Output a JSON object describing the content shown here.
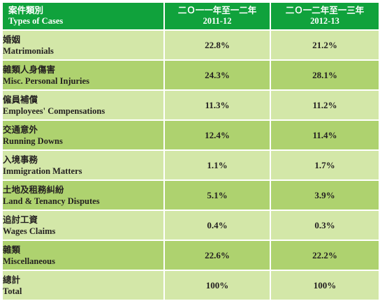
{
  "header": {
    "category_zh": "案件類別",
    "category_en": "Types of Cases",
    "year1_zh": "二Ｏ一一年至一二年",
    "year1": "2011-12",
    "year2_zh": "二Ｏ一二年至一三年",
    "year2": "2012-13"
  },
  "rows": [
    {
      "zh": "婚姻",
      "en": "Matrimonials",
      "v1": "22.8%",
      "v2": "21.2%"
    },
    {
      "zh": "雜類人身傷害",
      "en": "Misc. Personal Injuries",
      "v1": "24.3%",
      "v2": "28.1%"
    },
    {
      "zh": "僱員補償",
      "en": "Employees' Compensations",
      "v1": "11.3%",
      "v2": "11.2%"
    },
    {
      "zh": "交通意外",
      "en": "Running Downs",
      "v1": "12.4%",
      "v2": "11.4%"
    },
    {
      "zh": "入境事務",
      "en": "Immigration Matters",
      "v1": "1.1%",
      "v2": "1.7%"
    },
    {
      "zh": "土地及租務糾紛",
      "en": "Land & Tenancy Disputes",
      "v1": "5.1%",
      "v2": "3.9%"
    },
    {
      "zh": "追討工資",
      "en": "Wages Claims",
      "v1": "0.4%",
      "v2": "0.3%"
    },
    {
      "zh": "雜類",
      "en": "Miscellaneous",
      "v1": "22.6%",
      "v2": "22.2%"
    },
    {
      "zh": "總計",
      "en": "Total",
      "v1": "100%",
      "v2": "100%"
    }
  ],
  "colors": {
    "header_bg": "#10a23c",
    "row_light": "#d3e7a8",
    "row_dark": "#aed26f"
  }
}
